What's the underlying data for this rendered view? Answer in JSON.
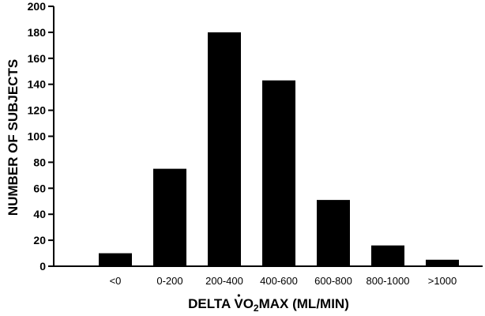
{
  "chart_data": {
    "type": "bar",
    "categories": [
      "<0",
      "0-200",
      "200-400",
      "400-600",
      "600-800",
      "800-1000",
      ">1000"
    ],
    "values": [
      10,
      75,
      180,
      143,
      51,
      16,
      5
    ],
    "xlabel": {
      "prefix": "DELTA ",
      "v": "V",
      "o": "O",
      "sub": "2",
      "suffix": "MAX (ML/MIN)"
    },
    "ylabel": "NUMBER OF SUBJECTS",
    "ylim": [
      0,
      200
    ],
    "yticks": [
      0,
      20,
      40,
      60,
      80,
      100,
      120,
      140,
      160,
      180,
      200
    ],
    "bar_color": "#000000",
    "grid": false
  }
}
